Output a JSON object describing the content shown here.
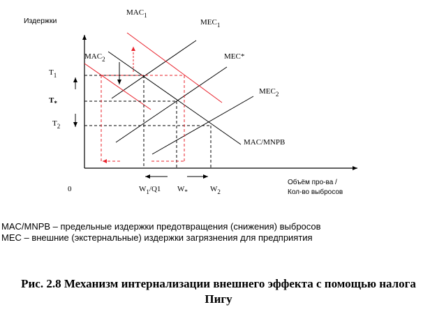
{
  "diagram": {
    "y_axis_label": "Издержки",
    "x_axis_label_line1": "Объём про-ва /",
    "x_axis_label_line2": "Кол-во выбросов",
    "origin": "0",
    "curves": {
      "mac1": "MAC",
      "mac1_sub": "1",
      "mac2": "MAC",
      "mac2_sub": "2",
      "mec1": "MEC",
      "mec1_sub": "1",
      "mec_star": "MEC*",
      "mec2": "MEC",
      "mec2_sub": "2",
      "mac_mnpb": "MAC/MNPB"
    },
    "y_ticks": {
      "t1": "T",
      "t1_sub": "1",
      "t_star": "T",
      "t_star_sub": "*",
      "t2": "T",
      "t2_sub": "2"
    },
    "x_ticks": {
      "w1": "W",
      "w1_sub": "1",
      "w1_suffix": "/Q1",
      "w_star": "W",
      "w_star_sub": "*",
      "w2": "W",
      "w2_sub": "2"
    },
    "colors": {
      "curves": "#000000",
      "tax_shift": "#e8202a"
    }
  },
  "legend": {
    "line1": "MAC/MNPB – предельные издержки предотвращения (снижения) выбросов",
    "line2": "MEC – внешние (экстернальные) издержки загрязнения для предприятия"
  },
  "caption": {
    "line1": "Рис. 2.8 Механизм интернализации внешнего эффекта с помощью налога",
    "line2": "Пигу"
  }
}
